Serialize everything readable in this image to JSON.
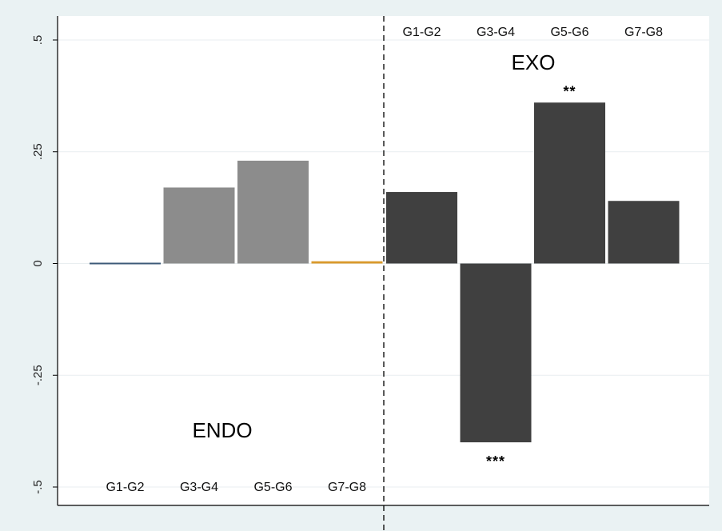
{
  "chart_data": {
    "type": "bar",
    "ylim": [
      -0.5,
      0.5
    ],
    "yticks": [
      {
        "value": -0.5,
        "label": "-.5"
      },
      {
        "value": -0.25,
        "label": "-.25"
      },
      {
        "value": 0,
        "label": "0"
      },
      {
        "value": 0.25,
        "label": ".25"
      },
      {
        "value": 0.5,
        "label": ".5"
      }
    ],
    "grid": true,
    "panels": [
      {
        "name": "ENDO",
        "categories": [
          "G1-G2",
          "G3-G4",
          "G5-G6",
          "G7-G8"
        ],
        "values": [
          -0.003,
          0.17,
          0.23,
          0.005
        ],
        "colors": [
          "#3c5a78",
          "#8c8c8c",
          "#8c8c8c",
          "#d9992b"
        ],
        "significance": [
          "",
          "",
          "",
          ""
        ]
      },
      {
        "name": "EXO",
        "categories": [
          "G1-G2",
          "G3-G4",
          "G5-G6",
          "G7-G8"
        ],
        "values": [
          0.16,
          -0.4,
          0.36,
          0.14
        ],
        "colors": [
          "#404040",
          "#404040",
          "#404040",
          "#404040"
        ],
        "significance": [
          "",
          "***",
          "**",
          ""
        ]
      }
    ]
  }
}
